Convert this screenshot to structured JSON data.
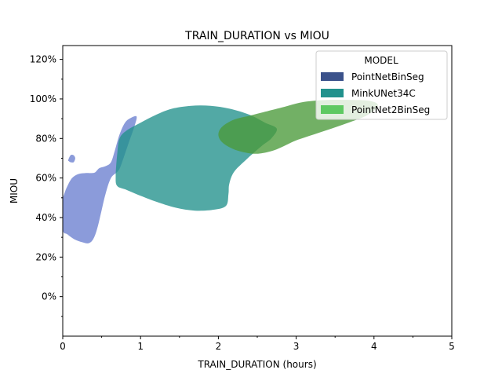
{
  "chart_data": {
    "type": "kde-contour",
    "title": "TRAIN_DURATION vs MIOU",
    "xlabel": "TRAIN_DURATION (hours)",
    "ylabel": "MIOU",
    "xlim": [
      0,
      5
    ],
    "ylim": [
      -0.2,
      1.27
    ],
    "x_ticks": [
      0,
      1,
      2,
      3,
      4,
      5
    ],
    "x_tick_labels": [
      "0",
      "1",
      "2",
      "3",
      "4",
      "5"
    ],
    "y_ticks": [
      0,
      0.2,
      0.4,
      0.6,
      0.8,
      1.0,
      1.2
    ],
    "y_tick_labels": [
      "0%",
      "20%",
      "40%",
      "60%",
      "80%",
      "100%",
      "120%"
    ],
    "grid": false,
    "legend": {
      "title": "MODEL",
      "placement": "top-right",
      "entries": [
        {
          "name": "PointNetBinSeg",
          "color": "#3b528b"
        },
        {
          "name": "MinkUNet34C",
          "color": "#21918c"
        },
        {
          "name": "PointNet2BinSeg",
          "color": "#5ec962"
        }
      ]
    },
    "series": [
      {
        "name": "PointNetBinSeg",
        "fill_color": "#6a7fd0",
        "opacity": 0.78,
        "regions": [
          [
            [
              0.0,
              0.48
            ],
            [
              0.02,
              0.52
            ],
            [
              0.06,
              0.56
            ],
            [
              0.12,
              0.6
            ],
            [
              0.2,
              0.62
            ],
            [
              0.3,
              0.625
            ],
            [
              0.38,
              0.625
            ],
            [
              0.42,
              0.63
            ],
            [
              0.47,
              0.65
            ],
            [
              0.55,
              0.66
            ],
            [
              0.62,
              0.68
            ],
            [
              0.67,
              0.74
            ],
            [
              0.73,
              0.82
            ],
            [
              0.8,
              0.88
            ],
            [
              0.88,
              0.905
            ],
            [
              0.95,
              0.91
            ],
            [
              0.92,
              0.86
            ],
            [
              0.85,
              0.78
            ],
            [
              0.78,
              0.7
            ],
            [
              0.72,
              0.64
            ],
            [
              0.62,
              0.6
            ],
            [
              0.55,
              0.52
            ],
            [
              0.49,
              0.42
            ],
            [
              0.44,
              0.34
            ],
            [
              0.39,
              0.29
            ],
            [
              0.33,
              0.27
            ],
            [
              0.25,
              0.275
            ],
            [
              0.15,
              0.29
            ],
            [
              0.06,
              0.315
            ],
            [
              0.0,
              0.34
            ]
          ],
          [
            [
              0.07,
              0.69
            ],
            [
              0.1,
              0.715
            ],
            [
              0.14,
              0.715
            ],
            [
              0.16,
              0.7
            ],
            [
              0.14,
              0.68
            ],
            [
              0.1,
              0.68
            ],
            [
              0.08,
              0.685
            ]
          ]
        ]
      },
      {
        "name": "MinkUNet34C",
        "fill_color": "#21918c",
        "opacity": 0.78,
        "regions": [
          [
            [
              0.68,
              0.61
            ],
            [
              0.7,
              0.72
            ],
            [
              0.73,
              0.8
            ],
            [
              0.82,
              0.84
            ],
            [
              1.0,
              0.88
            ],
            [
              1.2,
              0.92
            ],
            [
              1.4,
              0.95
            ],
            [
              1.65,
              0.965
            ],
            [
              1.9,
              0.965
            ],
            [
              2.15,
              0.95
            ],
            [
              2.4,
              0.92
            ],
            [
              2.6,
              0.88
            ],
            [
              2.75,
              0.85
            ],
            [
              2.68,
              0.8
            ],
            [
              2.55,
              0.76
            ],
            [
              2.35,
              0.69
            ],
            [
              2.2,
              0.63
            ],
            [
              2.14,
              0.57
            ],
            [
              2.13,
              0.52
            ],
            [
              2.1,
              0.46
            ],
            [
              1.95,
              0.44
            ],
            [
              1.7,
              0.435
            ],
            [
              1.45,
              0.45
            ],
            [
              1.2,
              0.48
            ],
            [
              1.0,
              0.51
            ],
            [
              0.82,
              0.54
            ],
            [
              0.7,
              0.56
            ]
          ]
        ]
      },
      {
        "name": "PointNet2BinSeg",
        "fill_color": "#4a9a3a",
        "opacity": 0.78,
        "regions": [
          [
            [
              2.0,
              0.82
            ],
            [
              2.05,
              0.86
            ],
            [
              2.2,
              0.895
            ],
            [
              2.4,
              0.915
            ],
            [
              2.6,
              0.935
            ],
            [
              2.85,
              0.96
            ],
            [
              3.1,
              0.985
            ],
            [
              3.4,
              0.995
            ],
            [
              3.7,
              0.995
            ],
            [
              3.95,
              0.99
            ],
            [
              4.05,
              0.965
            ],
            [
              3.9,
              0.915
            ],
            [
              3.6,
              0.87
            ],
            [
              3.3,
              0.83
            ],
            [
              3.0,
              0.79
            ],
            [
              2.75,
              0.745
            ],
            [
              2.55,
              0.725
            ],
            [
              2.4,
              0.725
            ],
            [
              2.2,
              0.745
            ],
            [
              2.05,
              0.78
            ]
          ]
        ]
      }
    ]
  }
}
